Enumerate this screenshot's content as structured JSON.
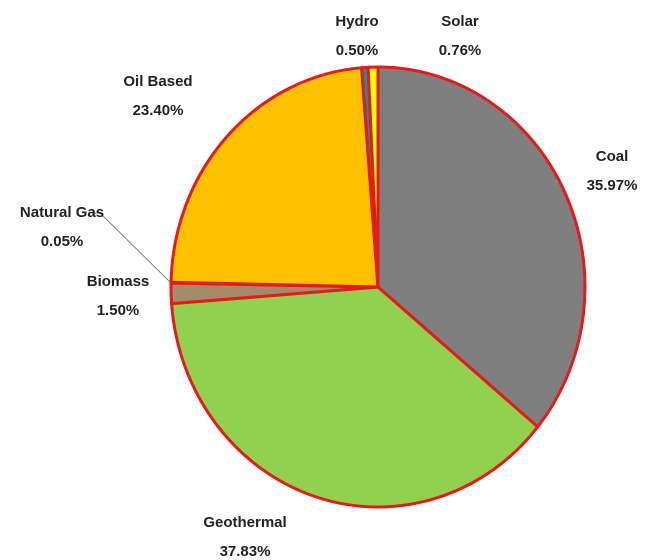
{
  "chart_data": {
    "type": "pie",
    "categories": [
      "Coal",
      "Geothermal",
      "Biomass",
      "Natural Gas",
      "Oil Based",
      "Hydro",
      "Solar"
    ],
    "values": [
      35.97,
      37.83,
      1.5,
      0.05,
      23.4,
      0.5,
      0.76
    ],
    "value_labels": [
      "35.97%",
      "37.83%",
      "1.50%",
      "0.05%",
      "23.40%",
      "0.50%",
      "0.76%"
    ],
    "colors": [
      "#7f7f7f",
      "#92d050",
      "#a58b6a",
      "#5b9bd5",
      "#ffc000",
      "#1b8fa6",
      "#ffff00"
    ]
  }
}
